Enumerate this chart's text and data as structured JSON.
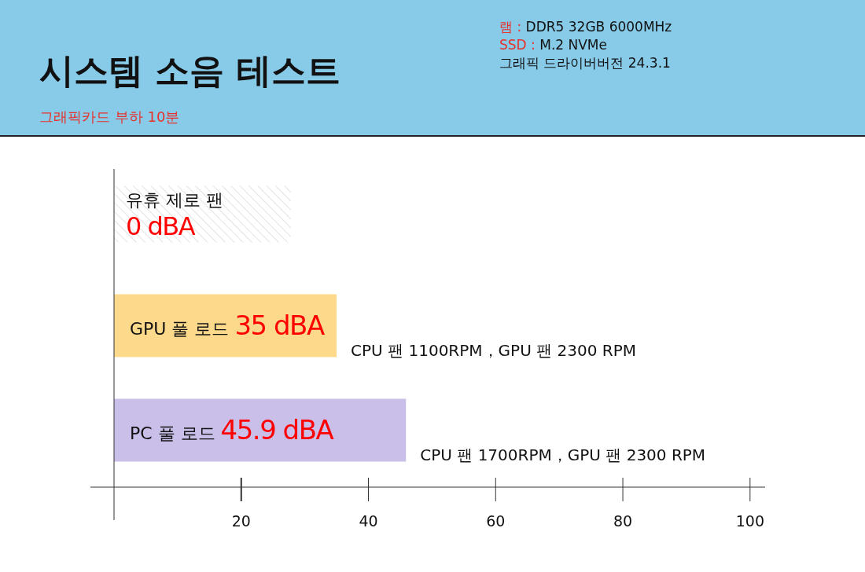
{
  "chart_data": {
    "type": "bar",
    "orientation": "horizontal",
    "title": "시스템 소음 테스트",
    "subtitle": "그래픽카드 부하 10분",
    "categories": [
      "유휴 제로 팬",
      "GPU 풀 로드",
      "PC 풀 로드"
    ],
    "values": [
      0,
      35,
      45.9
    ],
    "colors": [
      "#d9d9d9",
      "#fdd98c",
      "#c9bfe8"
    ],
    "value_labels": [
      "0 dBA",
      "35 dBA",
      "45.9 dBA"
    ],
    "xlim": [
      0,
      102
    ],
    "xticks": [
      20,
      40,
      60,
      80,
      100
    ],
    "annotations": [
      {
        "text": "CPU 팬 1100RPM，GPU 팬 2300 RPM",
        "x": 35,
        "y": "GPU 풀 로드"
      },
      {
        "text": "CPU 팬 1700RPM，GPU 팬 2300 RPM",
        "x": 45.9,
        "y": "PC 풀 로드"
      },
      "램 : DDR5 32GB 6000MHz",
      "SSD : M.2 NVMe",
      "그래픽 드라이버버전 24.3.1"
    ]
  }
}
